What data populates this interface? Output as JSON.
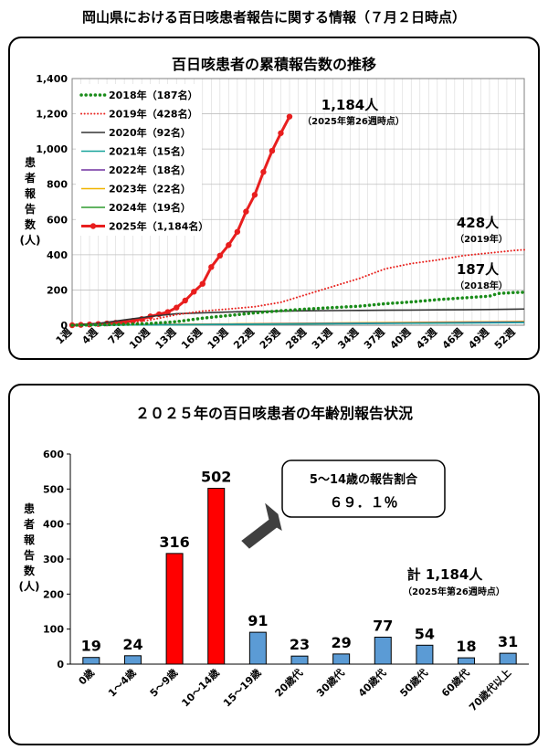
{
  "page_title": "岡山県における百日咳患者報告に関する情報（７月２日時点）",
  "chart_data": [
    {
      "type": "line",
      "title": "百日咳患者の累積報告数の推移",
      "ylabel_chars": [
        "患",
        "者",
        "報",
        "告",
        "数",
        "(人)"
      ],
      "ylim": [
        0,
        1400
      ],
      "yticks": [
        "0",
        "200",
        "400",
        "600",
        "800",
        "1,000",
        "1,200",
        "1,400"
      ],
      "x_tick_labels": [
        "1週",
        "4週",
        "7週",
        "10週",
        "13週",
        "16週",
        "19週",
        "22週",
        "25週",
        "28週",
        "31週",
        "34週",
        "37週",
        "40週",
        "43週",
        "46週",
        "49週",
        "52週"
      ],
      "x_tick_weeks": [
        1,
        4,
        7,
        10,
        13,
        16,
        19,
        22,
        25,
        28,
        31,
        34,
        37,
        40,
        43,
        46,
        49,
        52
      ],
      "x_range": [
        1,
        53
      ],
      "grid": true,
      "legend_position": "top-left",
      "series": [
        {
          "name": "2018年（187名）",
          "color": "#1a8c1a",
          "style": "dotted-thick",
          "x": [
            1,
            4,
            7,
            10,
            13,
            16,
            19,
            22,
            25,
            28,
            31,
            34,
            37,
            40,
            43,
            46,
            49,
            50,
            52,
            53
          ],
          "y": [
            0,
            2,
            5,
            10,
            20,
            40,
            55,
            70,
            82,
            92,
            100,
            108,
            122,
            132,
            145,
            155,
            165,
            180,
            186,
            187
          ]
        },
        {
          "name": "2019年（428名）",
          "color": "#e8231f",
          "style": "dotted",
          "x": [
            1,
            4,
            7,
            10,
            13,
            16,
            19,
            22,
            25,
            28,
            31,
            34,
            37,
            40,
            43,
            46,
            49,
            52,
            53
          ],
          "y": [
            0,
            3,
            10,
            30,
            60,
            80,
            92,
            105,
            130,
            175,
            220,
            265,
            320,
            350,
            370,
            395,
            410,
            425,
            428
          ]
        },
        {
          "name": "2020年（92名）",
          "color": "#333333",
          "style": "solid",
          "x": [
            1,
            4,
            7,
            10,
            13,
            16,
            19,
            22,
            25,
            28,
            31,
            34,
            37,
            40,
            43,
            46,
            49,
            52,
            53
          ],
          "y": [
            0,
            10,
            30,
            50,
            65,
            70,
            75,
            78,
            80,
            82,
            83,
            84,
            85,
            86,
            87,
            88,
            89,
            91,
            92
          ]
        },
        {
          "name": "2021年（15名）",
          "color": "#17a39b",
          "style": "solid",
          "x": [
            1,
            10,
            20,
            30,
            40,
            50,
            53
          ],
          "y": [
            0,
            2,
            5,
            8,
            11,
            14,
            15
          ]
        },
        {
          "name": "2022年（18名）",
          "color": "#7030a0",
          "style": "solid",
          "x": [
            1,
            10,
            20,
            30,
            40,
            50,
            53
          ],
          "y": [
            0,
            3,
            6,
            10,
            13,
            17,
            18
          ]
        },
        {
          "name": "2023年（22名）",
          "color": "#f0b400",
          "style": "solid",
          "x": [
            1,
            10,
            20,
            30,
            40,
            50,
            53
          ],
          "y": [
            0,
            4,
            8,
            12,
            16,
            20,
            22
          ]
        },
        {
          "name": "2024年（19名）",
          "color": "#2e9c2e",
          "style": "solid",
          "x": [
            1,
            10,
            20,
            30,
            40,
            50,
            53
          ],
          "y": [
            0,
            2,
            5,
            9,
            13,
            17,
            19
          ]
        },
        {
          "name": "2025年（1,184名）",
          "color": "#e81e1e",
          "style": "solid-markers",
          "x": [
            1,
            2,
            3,
            4,
            5,
            6,
            7,
            8,
            9,
            10,
            11,
            12,
            13,
            14,
            15,
            16,
            17,
            18,
            19,
            20,
            21,
            22,
            23,
            24,
            25,
            26
          ],
          "y": [
            0,
            2,
            4,
            7,
            10,
            14,
            18,
            25,
            35,
            50,
            62,
            75,
            100,
            140,
            190,
            235,
            330,
            395,
            455,
            530,
            645,
            740,
            870,
            990,
            1090,
            1184
          ]
        }
      ],
      "annotations": [
        {
          "id": "a2025",
          "text": "1,184人",
          "sub": "（2025年第26週時点）"
        },
        {
          "id": "a2019",
          "text": "428人",
          "sub": "（2019年）"
        },
        {
          "id": "a2018",
          "text": "187人",
          "sub": "（2018年）"
        }
      ]
    },
    {
      "type": "bar",
      "title": "２０２５年の百日咳患者の年齢別報告状況",
      "ylabel_chars": [
        "患",
        "者",
        "報",
        "告",
        "数",
        "(人)"
      ],
      "ylim": [
        0,
        600
      ],
      "yticks": [
        "0",
        "100",
        "200",
        "300",
        "400",
        "500",
        "600"
      ],
      "categories": [
        "0歳",
        "1～4歳",
        "5～9歳",
        "10～14歳",
        "15～19歳",
        "20歳代",
        "30歳代",
        "40歳代",
        "50歳代",
        "60歳代",
        "70歳代以上"
      ],
      "values": [
        19,
        24,
        316,
        502,
        91,
        23,
        29,
        77,
        54,
        18,
        31
      ],
      "colors": [
        "#5b9bd5",
        "#5b9bd5",
        "#ff0000",
        "#ff0000",
        "#5b9bd5",
        "#5b9bd5",
        "#5b9bd5",
        "#5b9bd5",
        "#5b9bd5",
        "#5b9bd5",
        "#5b9bd5"
      ],
      "callout": {
        "line1": "5～14歳の報告割合",
        "line2": "６９．１％"
      },
      "total": {
        "text": "計 1,184人",
        "sub": "（2025年第26週時点）"
      }
    }
  ]
}
